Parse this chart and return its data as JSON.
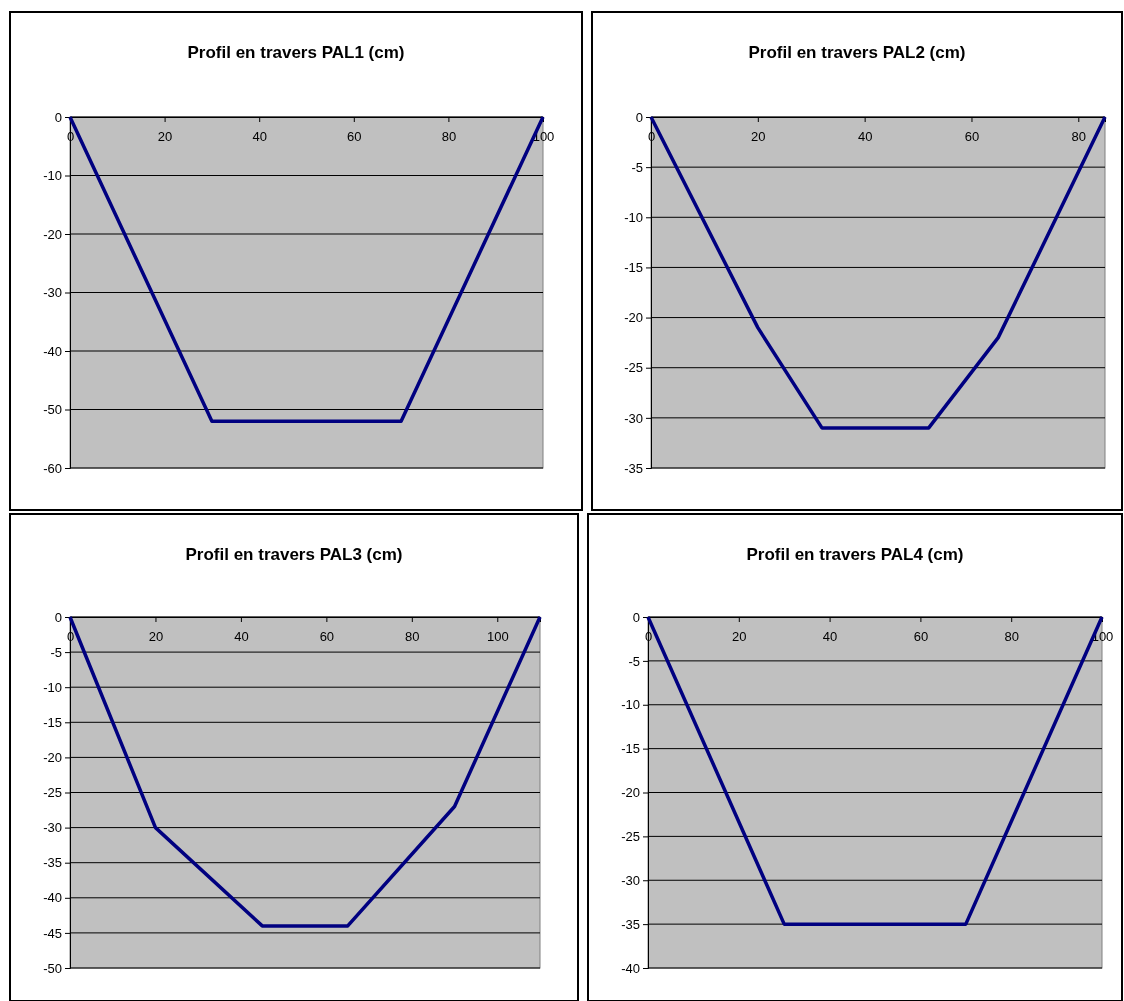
{
  "chart_data": [
    {
      "type": "line",
      "title": "Profil en travers PAL1 (cm)",
      "x": [
        0,
        30,
        70,
        100
      ],
      "series": [
        {
          "color": "#000080",
          "values": [
            0,
            -52,
            -52,
            0
          ]
        }
      ],
      "xlim": [
        0,
        100
      ],
      "xticks": [
        0,
        20,
        40,
        60,
        80,
        100
      ],
      "ylim": [
        -60,
        0
      ],
      "yticks": [
        0,
        -10,
        -20,
        -30,
        -40,
        -50,
        -60
      ],
      "grid": "y",
      "marker": "none",
      "line_style": "solid"
    },
    {
      "type": "line",
      "title": "Profil en travers PAL2 (cm)",
      "x": [
        0,
        20,
        32,
        52,
        65,
        85
      ],
      "series": [
        {
          "color": "#000080",
          "values": [
            0,
            -21,
            -31,
            -31,
            -22,
            0
          ]
        }
      ],
      "xlim": [
        0,
        85
      ],
      "xticks": [
        0,
        20,
        40,
        60,
        80
      ],
      "ylim": [
        -35,
        0
      ],
      "yticks": [
        0,
        -5,
        -10,
        -15,
        -20,
        -25,
        -30,
        -35
      ],
      "grid": "y",
      "marker": "none",
      "line_style": "solid"
    },
    {
      "type": "line",
      "title": "Profil en travers PAL3 (cm)",
      "x": [
        0,
        20,
        45,
        65,
        90,
        110
      ],
      "series": [
        {
          "color": "#000080",
          "values": [
            0,
            -30,
            -44,
            -44,
            -27,
            0
          ]
        }
      ],
      "xlim": [
        0,
        110
      ],
      "xticks": [
        0,
        20,
        40,
        60,
        80,
        100
      ],
      "ylim": [
        -50,
        0
      ],
      "yticks": [
        0,
        -5,
        -10,
        -15,
        -20,
        -25,
        -30,
        -35,
        -40,
        -45,
        -50
      ],
      "grid": "y",
      "marker": "none",
      "line_style": "solid"
    },
    {
      "type": "line",
      "title": "Profil en travers PAL4 (cm)",
      "x": [
        0,
        30,
        70,
        100
      ],
      "series": [
        {
          "color": "#000080",
          "values": [
            0,
            -35,
            -35,
            0
          ]
        }
      ],
      "xlim": [
        0,
        100
      ],
      "xticks": [
        0,
        20,
        40,
        60,
        80,
        100
      ],
      "ylim": [
        -40,
        0
      ],
      "yticks": [
        0,
        -5,
        -10,
        -15,
        -20,
        -25,
        -30,
        -35,
        -40
      ],
      "grid": "y",
      "marker": "none",
      "line_style": "solid"
    }
  ]
}
